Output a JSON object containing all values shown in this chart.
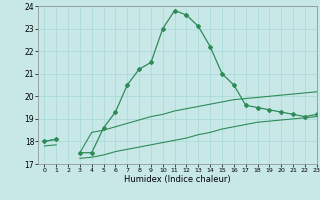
{
  "xlabel": "Humidex (Indice chaleur)",
  "x_values": [
    0,
    1,
    2,
    3,
    4,
    5,
    6,
    7,
    8,
    9,
    10,
    11,
    12,
    13,
    14,
    15,
    16,
    17,
    18,
    19,
    20,
    21,
    22,
    23
  ],
  "line_peak": [
    18.0,
    18.1,
    null,
    17.5,
    17.5,
    18.6,
    19.3,
    20.5,
    21.2,
    21.5,
    23.0,
    23.8,
    23.6,
    23.1,
    22.2,
    21.0,
    20.5,
    19.6,
    19.5,
    19.4,
    19.3,
    19.2,
    19.1,
    19.2
  ],
  "line_upper": [
    18.0,
    18.1,
    null,
    17.5,
    18.4,
    18.5,
    18.65,
    18.8,
    18.95,
    19.1,
    19.2,
    19.35,
    19.45,
    19.55,
    19.65,
    19.75,
    19.85,
    19.9,
    19.95,
    20.0,
    20.05,
    20.1,
    20.15,
    20.2
  ],
  "line_lower": [
    17.8,
    17.85,
    null,
    17.25,
    17.3,
    17.4,
    17.55,
    17.65,
    17.75,
    17.85,
    17.95,
    18.05,
    18.15,
    18.3,
    18.4,
    18.55,
    18.65,
    18.75,
    18.85,
    18.9,
    18.95,
    19.0,
    19.05,
    19.1
  ],
  "color": "#2e8b57",
  "bg_color": "#c8e8e8",
  "grid_color": "#a8d8d8",
  "ylim": [
    17,
    24
  ],
  "xlim": [
    -0.5,
    23
  ],
  "yticks": [
    17,
    18,
    19,
    20,
    21,
    22,
    23,
    24
  ],
  "xticks": [
    0,
    1,
    2,
    3,
    4,
    5,
    6,
    7,
    8,
    9,
    10,
    11,
    12,
    13,
    14,
    15,
    16,
    17,
    18,
    19,
    20,
    21,
    22,
    23
  ]
}
